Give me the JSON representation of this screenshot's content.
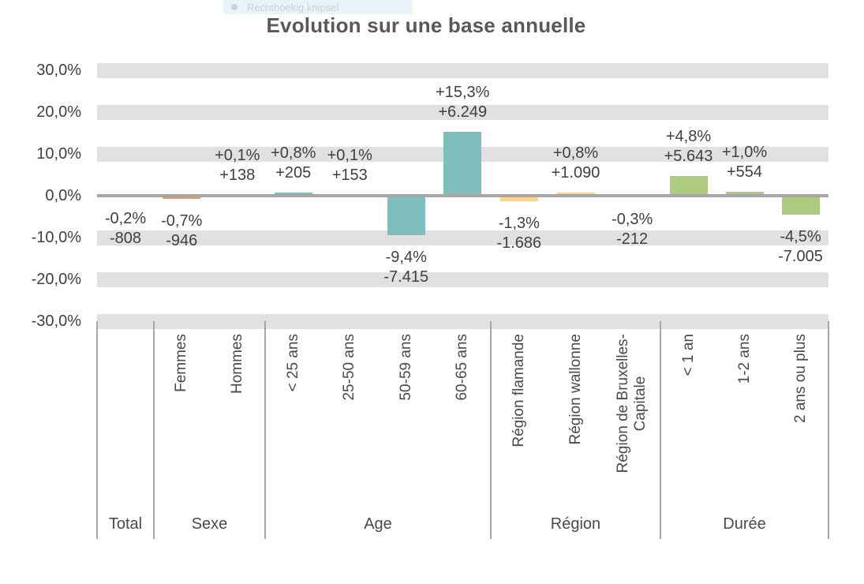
{
  "overlay": {
    "label": "Rechthoekig knipsel"
  },
  "chart_data": {
    "type": "bar",
    "title": "Evolution sur une base annuelle",
    "xlabel": "",
    "ylabel": "",
    "ylim": [
      -30,
      30
    ],
    "grid": "horizontal-bands",
    "legend": "none",
    "yticks": [
      {
        "value": 30,
        "label": "30,0%"
      },
      {
        "value": 20,
        "label": "20,0%"
      },
      {
        "value": 10,
        "label": "10,0%"
      },
      {
        "value": 0,
        "label": "0,0%"
      },
      {
        "value": -10,
        "label": "-10,0%"
      },
      {
        "value": -20,
        "label": "-20,0%"
      },
      {
        "value": -30,
        "label": "-30,0%"
      }
    ],
    "groups": [
      {
        "label": "Total",
        "color": "#a6a6a6",
        "items": [
          {
            "category": "",
            "pct": -0.2,
            "pct_label": "-0,2%",
            "abs_label": "-808"
          }
        ]
      },
      {
        "label": "Sexe",
        "color": "#f09a5e",
        "items": [
          {
            "category": "Femmes",
            "pct": -0.7,
            "pct_label": "-0,7%",
            "abs_label": "-946"
          },
          {
            "category": "Hommes",
            "pct": 0.1,
            "pct_label": "+0,1%",
            "abs_label": "+138"
          }
        ]
      },
      {
        "label": "Age",
        "color": "#7ebebd",
        "items": [
          {
            "category": "< 25 ans",
            "pct": 0.8,
            "pct_label": "+0,8%",
            "abs_label": "+205"
          },
          {
            "category": "25-50 ans",
            "pct": 0.1,
            "pct_label": "+0,1%",
            "abs_label": "+153"
          },
          {
            "category": "50-59 ans",
            "pct": -9.4,
            "pct_label": "-9,4%",
            "abs_label": "-7.415"
          },
          {
            "category": "60-65 ans",
            "pct": 15.3,
            "pct_label": "+15,3%",
            "abs_label": "+6.249"
          }
        ]
      },
      {
        "label": "Région",
        "color": "#fcd58f",
        "items": [
          {
            "category": "Région flamande",
            "pct": -1.3,
            "pct_label": "-1,3%",
            "abs_label": "-1.686"
          },
          {
            "category": "Région wallonne",
            "pct": 0.8,
            "pct_label": "+0,8%",
            "abs_label": "+1.090"
          },
          {
            "category": "Région de Bruxelles-\nCapitale",
            "pct": -0.3,
            "pct_label": "-0,3%",
            "abs_label": "-212"
          }
        ]
      },
      {
        "label": "Durée",
        "color": "#aecb80",
        "items": [
          {
            "category": "< 1 an",
            "pct": 4.8,
            "pct_label": "+4,8%",
            "abs_label": "+5.643"
          },
          {
            "category": "1-2 ans",
            "pct": 1.0,
            "pct_label": "+1,0%",
            "abs_label": "+554"
          },
          {
            "category": "2 ans ou plus",
            "pct": -4.5,
            "pct_label": "-4,5%",
            "abs_label": "-7.005"
          }
        ]
      }
    ],
    "colors": {
      "band": "#e1e1e1",
      "axis_line": "#a6a6a6",
      "text": "#404040",
      "category_text": "#4a4a4a",
      "title": "#595959"
    }
  }
}
